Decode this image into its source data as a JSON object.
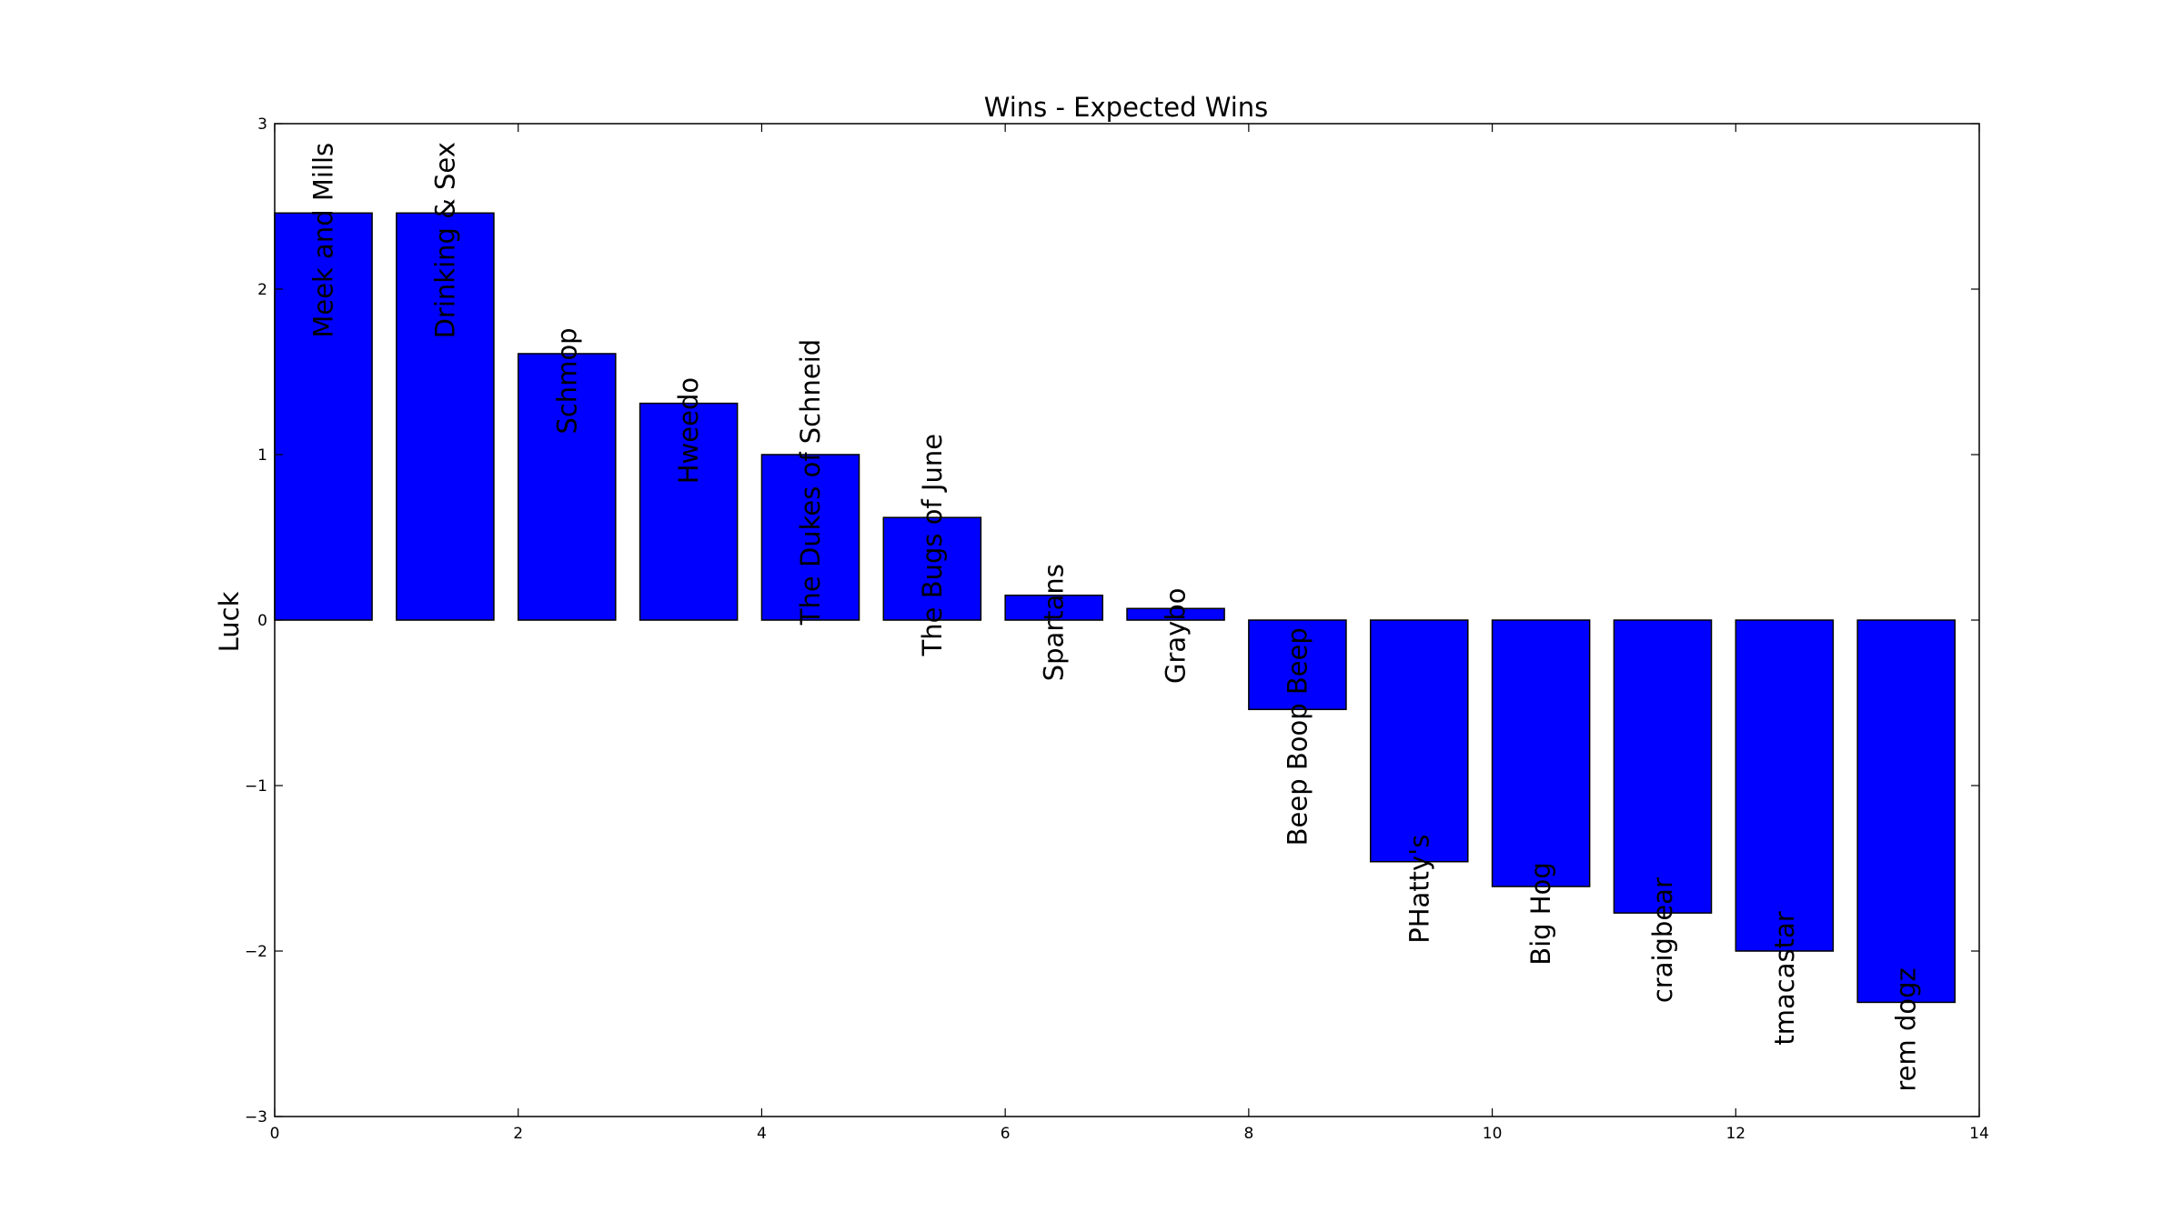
{
  "chart_data": {
    "type": "bar",
    "title": "Wins - Expected Wins",
    "xlabel": "",
    "ylabel": "Luck",
    "xlim": [
      0,
      14
    ],
    "ylim": [
      -3,
      3
    ],
    "xticks": [
      0,
      2,
      4,
      6,
      8,
      10,
      12,
      14
    ],
    "yticks": [
      3,
      2,
      1,
      0,
      -1,
      -2,
      -3
    ],
    "ytick_labels": [
      "3",
      "2",
      "1",
      "0",
      "−1",
      "−2",
      "−3"
    ],
    "grid": false,
    "bar_color": "#0000ff",
    "bar_width": 0.8,
    "categories": [
      "Meek and Mills",
      "Drinking & Sex",
      "Schmop",
      "Hweedo",
      "The Dukes of Schneid",
      "The Bugs of June",
      "Spartans",
      "Graybo",
      "Beep Boop Beep",
      "PHatty's",
      "Big Hog",
      "craigbear",
      "tmacastar",
      "rem dogz"
    ],
    "x": [
      0,
      1,
      2,
      3,
      4,
      5,
      6,
      7,
      8,
      9,
      10,
      11,
      12,
      13
    ],
    "values": [
      2.46,
      2.46,
      1.61,
      1.31,
      1.0,
      0.62,
      0.15,
      0.07,
      -0.54,
      -1.46,
      -1.61,
      -1.77,
      -2.0,
      -2.31
    ]
  }
}
